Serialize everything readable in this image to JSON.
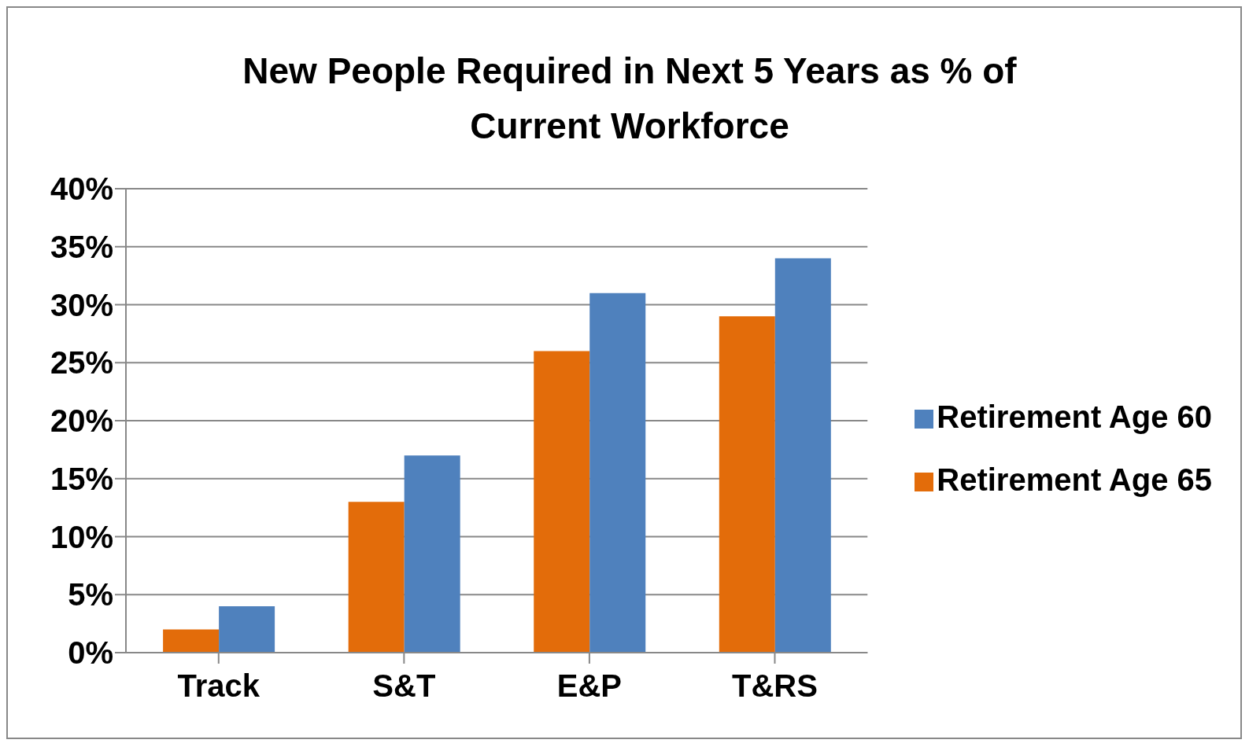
{
  "chart_data": {
    "type": "bar",
    "title": "New People Required in Next 5 Years as % of Current Workforce",
    "categories": [
      "Track",
      "S&T",
      "E&P",
      "T&RS"
    ],
    "series": [
      {
        "name": "Retirement Age 65",
        "color": "#e36c0a",
        "values": [
          2,
          13,
          26,
          29
        ]
      },
      {
        "name": "Retirement Age 60",
        "color": "#4f81bd",
        "values": [
          4,
          17,
          31,
          34
        ]
      }
    ],
    "ylim": [
      0,
      40
    ],
    "yticks": [
      {
        "value": 0,
        "label": "0%"
      },
      {
        "value": 5,
        "label": "5%"
      },
      {
        "value": 10,
        "label": "10%"
      },
      {
        "value": 15,
        "label": "15%"
      },
      {
        "value": 20,
        "label": "20%"
      },
      {
        "value": 25,
        "label": "25%"
      },
      {
        "value": 30,
        "label": "30%"
      },
      {
        "value": 35,
        "label": "35%"
      },
      {
        "value": 40,
        "label": "40%"
      }
    ],
    "grid": "y",
    "legend": "right"
  }
}
